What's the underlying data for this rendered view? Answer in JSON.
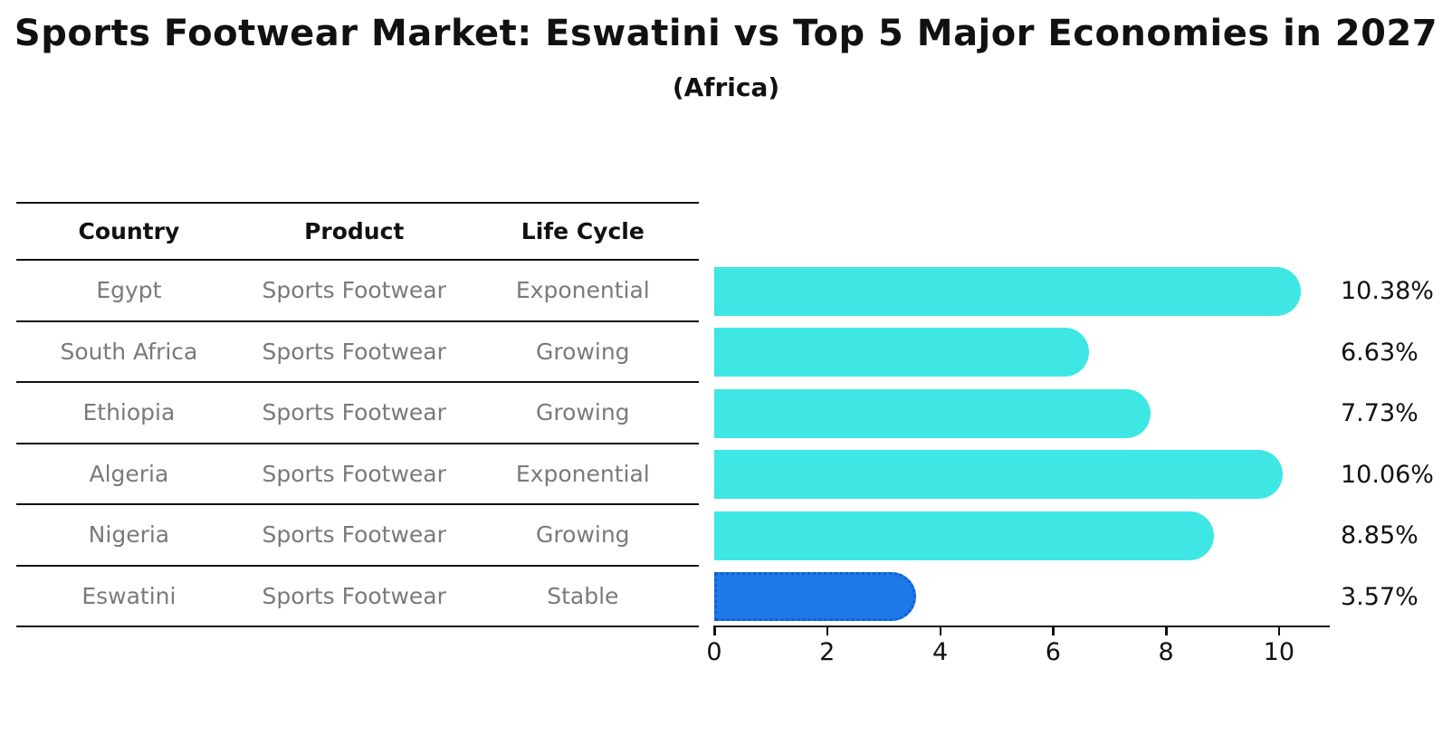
{
  "title": "Sports Footwear Market: Eswatini vs Top 5 Major Economies in 2027",
  "subtitle": "(Africa)",
  "table": {
    "headers": {
      "country": "Country",
      "product": "Product",
      "life_cycle": "Life Cycle"
    },
    "rows": [
      {
        "country": "Egypt",
        "product": "Sports Footwear",
        "life_cycle": "Exponential",
        "highlight": false
      },
      {
        "country": "South Africa",
        "product": "Sports Footwear",
        "life_cycle": "Growing",
        "highlight": false
      },
      {
        "country": "Ethiopia",
        "product": "Sports Footwear",
        "life_cycle": "Growing",
        "highlight": false
      },
      {
        "country": "Algeria",
        "product": "Sports Footwear",
        "life_cycle": "Exponential",
        "highlight": false
      },
      {
        "country": "Nigeria",
        "product": "Sports Footwear",
        "life_cycle": "Growing",
        "highlight": false
      },
      {
        "country": "Eswatini",
        "product": "Sports Footwear",
        "life_cycle": "Stable",
        "highlight": true
      }
    ]
  },
  "chart_data": {
    "type": "bar",
    "orientation": "horizontal",
    "title": "Sports Footwear Market: Eswatini vs Top 5 Major Economies in 2027",
    "subtitle": "(Africa)",
    "categories": [
      "Egypt",
      "South Africa",
      "Ethiopia",
      "Algeria",
      "Nigeria",
      "Eswatini"
    ],
    "values": [
      10.38,
      6.63,
      7.73,
      10.06,
      8.85,
      3.57
    ],
    "labels": [
      "10.38%",
      "6.63%",
      "7.73%",
      "10.06%",
      "8.85%",
      "3.57%"
    ],
    "xlabel": "",
    "ylabel": "",
    "xlim": [
      0,
      10.9
    ],
    "xticks": [
      0,
      2,
      4,
      6,
      8,
      10
    ],
    "grid": false,
    "legend": false,
    "colors": {
      "bar_default": "#3ee6e4",
      "bar_highlight": "#1e78e8",
      "bar_highlight_border": "#0e5fd8",
      "highlight_text": "#2b7bd1",
      "table_text": "#7a7a7a",
      "axis_text": "#111111"
    }
  }
}
